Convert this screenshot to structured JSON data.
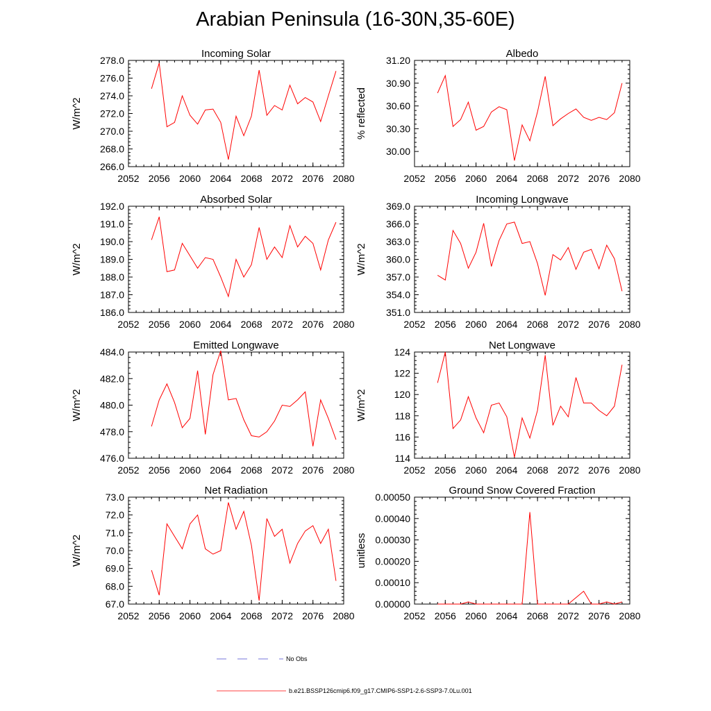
{
  "title": "Arabian Peninsula (16-30N,35-60E)",
  "legend": {
    "entries": [
      {
        "label": "No Obs",
        "style": "dashed",
        "color": "#4a4ad0"
      },
      {
        "label": "b.e21.BSSP126cmip6.f09_g17.CMIP6-SSP1-2.6-SSP3-7.0Lu.001",
        "style": "solid",
        "color": "#ff0000"
      }
    ]
  },
  "chart_data": [
    {
      "type": "line",
      "title": "Incoming Solar",
      "ylabel": "W/m^2",
      "xlim": [
        2052,
        2080
      ],
      "ylim": [
        266.0,
        278.0
      ],
      "xticks": [
        "2052",
        "2056",
        "2060",
        "2064",
        "2068",
        "2072",
        "2076",
        "2080"
      ],
      "yticks": [
        "266.0",
        "268.0",
        "270.0",
        "272.0",
        "274.0",
        "276.0",
        "278.0"
      ],
      "x": [
        2055,
        2056,
        2057,
        2058,
        2059,
        2060,
        2061,
        2062,
        2063,
        2064,
        2065,
        2066,
        2067,
        2068,
        2069,
        2070,
        2071,
        2072,
        2073,
        2074,
        2075,
        2076,
        2077,
        2078,
        2079
      ],
      "values": [
        274.8,
        277.7,
        270.5,
        271.0,
        274.0,
        271.8,
        270.8,
        272.4,
        272.5,
        271.0,
        266.8,
        271.7,
        269.5,
        271.7,
        276.9,
        271.8,
        272.9,
        272.4,
        275.2,
        273.1,
        273.8,
        273.3,
        271.1,
        274.0,
        276.8
      ]
    },
    {
      "type": "line",
      "title": "Albedo",
      "ylabel": "% reflected",
      "xlim": [
        2052,
        2080
      ],
      "ylim": [
        29.8,
        31.2
      ],
      "xticks": [
        "2052",
        "2056",
        "2060",
        "2064",
        "2068",
        "2072",
        "2076",
        "2080"
      ],
      "yticks": [
        "30.00",
        "30.30",
        "30.60",
        "30.90",
        "31.20"
      ],
      "ytick_values": [
        30.0,
        30.3,
        30.6,
        30.9,
        31.2
      ],
      "x": [
        2055,
        2056,
        2057,
        2058,
        2059,
        2060,
        2061,
        2062,
        2063,
        2064,
        2065,
        2066,
        2067,
        2068,
        2069,
        2070,
        2071,
        2072,
        2073,
        2074,
        2075,
        2076,
        2077,
        2078,
        2079
      ],
      "values": [
        30.77,
        31.0,
        30.33,
        30.42,
        30.65,
        30.28,
        30.33,
        30.52,
        30.59,
        30.55,
        29.88,
        30.35,
        30.14,
        30.52,
        30.99,
        30.34,
        30.43,
        30.5,
        30.56,
        30.45,
        30.41,
        30.45,
        30.42,
        30.51,
        30.9
      ]
    },
    {
      "type": "line",
      "title": "Absorbed Solar",
      "ylabel": "W/m^2",
      "xlim": [
        2052,
        2080
      ],
      "ylim": [
        186.0,
        192.0
      ],
      "xticks": [
        "2052",
        "2056",
        "2060",
        "2064",
        "2068",
        "2072",
        "2076",
        "2080"
      ],
      "yticks": [
        "186.0",
        "187.0",
        "188.0",
        "189.0",
        "190.0",
        "191.0",
        "192.0"
      ],
      "x": [
        2055,
        2056,
        2057,
        2058,
        2059,
        2060,
        2061,
        2062,
        2063,
        2064,
        2065,
        2066,
        2067,
        2068,
        2069,
        2070,
        2071,
        2072,
        2073,
        2074,
        2075,
        2076,
        2077,
        2078,
        2079
      ],
      "values": [
        190.1,
        191.4,
        188.3,
        188.4,
        189.9,
        189.2,
        188.5,
        189.1,
        189.0,
        188.0,
        186.9,
        189.0,
        188.0,
        188.7,
        190.8,
        189.0,
        189.7,
        189.1,
        190.9,
        189.7,
        190.3,
        189.9,
        188.4,
        190.1,
        191.1
      ]
    },
    {
      "type": "line",
      "title": "Incoming Longwave",
      "ylabel": "W/m^2",
      "xlim": [
        2052,
        2080
      ],
      "ylim": [
        351.0,
        369.0
      ],
      "xticks": [
        "2052",
        "2056",
        "2060",
        "2064",
        "2068",
        "2072",
        "2076",
        "2080"
      ],
      "yticks": [
        "351.0",
        "354.0",
        "357.0",
        "360.0",
        "363.0",
        "366.0",
        "369.0"
      ],
      "x": [
        2055,
        2056,
        2057,
        2058,
        2059,
        2060,
        2061,
        2062,
        2063,
        2064,
        2065,
        2066,
        2067,
        2068,
        2069,
        2070,
        2071,
        2072,
        2073,
        2074,
        2075,
        2076,
        2077,
        2078,
        2079
      ],
      "values": [
        357.3,
        356.5,
        364.9,
        362.7,
        358.5,
        361.2,
        366.1,
        358.8,
        363.2,
        366.0,
        366.3,
        362.7,
        363.0,
        359.3,
        353.9,
        360.8,
        359.9,
        362.0,
        358.3,
        361.2,
        361.7,
        358.4,
        362.4,
        360.1,
        354.6
      ]
    },
    {
      "type": "line",
      "title": "Emitted Longwave",
      "ylabel": "W/m^2",
      "xlim": [
        2052,
        2080
      ],
      "ylim": [
        476.0,
        484.0
      ],
      "xticks": [
        "2052",
        "2056",
        "2060",
        "2064",
        "2068",
        "2072",
        "2076",
        "2080"
      ],
      "yticks": [
        "476.0",
        "478.0",
        "480.0",
        "482.0",
        "484.0"
      ],
      "x": [
        2055,
        2056,
        2057,
        2058,
        2059,
        2060,
        2061,
        2062,
        2063,
        2064,
        2065,
        2066,
        2067,
        2068,
        2069,
        2070,
        2071,
        2072,
        2073,
        2074,
        2075,
        2076,
        2077,
        2078,
        2079
      ],
      "values": [
        478.4,
        480.4,
        481.6,
        480.2,
        478.3,
        479.0,
        482.6,
        477.8,
        482.3,
        484.1,
        480.4,
        480.5,
        478.9,
        477.7,
        477.6,
        478.0,
        478.8,
        480.0,
        479.9,
        480.4,
        481.0,
        476.9,
        480.4,
        479.0,
        477.4
      ]
    },
    {
      "type": "line",
      "title": "Net Longwave",
      "ylabel": "W/m^2",
      "xlim": [
        2052,
        2080
      ],
      "ylim": [
        114,
        124
      ],
      "xticks": [
        "2052",
        "2056",
        "2060",
        "2064",
        "2068",
        "2072",
        "2076",
        "2080"
      ],
      "yticks": [
        "114",
        "116",
        "118",
        "120",
        "122",
        "124"
      ],
      "x": [
        2055,
        2056,
        2057,
        2058,
        2059,
        2060,
        2061,
        2062,
        2063,
        2064,
        2065,
        2066,
        2067,
        2068,
        2069,
        2070,
        2071,
        2072,
        2073,
        2074,
        2075,
        2076,
        2077,
        2078,
        2079
      ],
      "values": [
        121.1,
        124.0,
        116.8,
        117.6,
        119.8,
        117.8,
        116.4,
        119.0,
        119.2,
        117.9,
        114.1,
        117.8,
        115.9,
        118.5,
        123.7,
        117.1,
        118.9,
        117.9,
        121.6,
        119.2,
        119.2,
        118.5,
        118.0,
        118.9,
        122.8
      ]
    },
    {
      "type": "line",
      "title": "Net Radiation",
      "ylabel": "W/m^2",
      "xlim": [
        2052,
        2080
      ],
      "ylim": [
        67.0,
        73.0
      ],
      "xticks": [
        "2052",
        "2056",
        "2060",
        "2064",
        "2068",
        "2072",
        "2076",
        "2080"
      ],
      "yticks": [
        "67.0",
        "68.0",
        "69.0",
        "70.0",
        "71.0",
        "72.0",
        "73.0"
      ],
      "x": [
        2055,
        2056,
        2057,
        2058,
        2059,
        2060,
        2061,
        2062,
        2063,
        2064,
        2065,
        2066,
        2067,
        2068,
        2069,
        2070,
        2071,
        2072,
        2073,
        2074,
        2075,
        2076,
        2077,
        2078,
        2079
      ],
      "values": [
        68.9,
        67.5,
        71.5,
        70.8,
        70.1,
        71.5,
        72.0,
        70.1,
        69.8,
        70.0,
        72.7,
        71.2,
        72.2,
        70.3,
        67.2,
        71.8,
        70.8,
        71.2,
        69.3,
        70.4,
        71.1,
        71.4,
        70.4,
        71.2,
        68.3
      ]
    },
    {
      "type": "line",
      "title": "Ground Snow Covered Fraction",
      "ylabel": "unitless",
      "xlim": [
        2052,
        2080
      ],
      "ylim": [
        0.0,
        0.0005
      ],
      "xticks": [
        "2052",
        "2056",
        "2060",
        "2064",
        "2068",
        "2072",
        "2076",
        "2080"
      ],
      "yticks": [
        "0.00000",
        "0.00010",
        "0.00020",
        "0.00030",
        "0.00040",
        "0.00050"
      ],
      "x": [
        2055,
        2056,
        2057,
        2058,
        2059,
        2060,
        2061,
        2062,
        2063,
        2064,
        2065,
        2066,
        2067,
        2068,
        2069,
        2070,
        2071,
        2072,
        2073,
        2074,
        2075,
        2076,
        2077,
        2078,
        2079
      ],
      "values": [
        0,
        0,
        0,
        0,
        1e-05,
        0,
        0,
        0,
        0,
        0,
        0,
        0,
        0.00043,
        0,
        0,
        0,
        0,
        0,
        3e-05,
        6e-05,
        0,
        0,
        1e-05,
        0,
        1e-05
      ]
    }
  ]
}
